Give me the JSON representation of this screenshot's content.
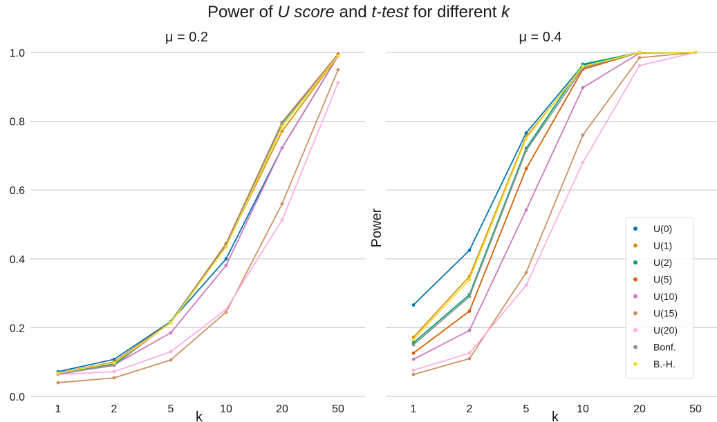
{
  "figure": {
    "title_parts": [
      {
        "text": "Power of ",
        "italic": false
      },
      {
        "text": "U score",
        "italic": true
      },
      {
        "text": " and ",
        "italic": false
      },
      {
        "text": "t-test",
        "italic": true
      },
      {
        "text": " for different ",
        "italic": false
      },
      {
        "text": "k",
        "italic": true
      }
    ]
  },
  "chart_data": [
    {
      "type": "line",
      "title": "μ = 0.2",
      "xlabel": "k",
      "ylabel": "",
      "categories": [
        "1",
        "2",
        "5",
        "10",
        "20",
        "50"
      ],
      "ylim": [
        0.0,
        1.0
      ],
      "yticks": [
        "0.0",
        "0.2",
        "0.4",
        "0.6",
        "0.8",
        "1.0"
      ],
      "grid": "horizontal",
      "legend": "none",
      "series": [
        {
          "name": "U(0)",
          "color": "#0173b2",
          "values": [
            0.072,
            0.108,
            0.218,
            0.4,
            0.723,
            0.99
          ]
        },
        {
          "name": "U(1)",
          "color": "#de8f05",
          "values": [
            0.068,
            0.1,
            0.214,
            0.438,
            0.771,
            0.99
          ]
        },
        {
          "name": "U(2)",
          "color": "#029e73",
          "values": [
            0.066,
            0.094,
            0.218,
            0.442,
            0.793,
            0.993
          ]
        },
        {
          "name": "U(5)",
          "color": "#d55e00",
          "values": [
            0.068,
            0.1,
            0.216,
            0.444,
            0.797,
            0.995
          ]
        },
        {
          "name": "U(10)",
          "color": "#cc78bc",
          "values": [
            0.064,
            0.092,
            0.185,
            0.381,
            0.723,
            0.99
          ]
        },
        {
          "name": "U(15)",
          "color": "#ca9161",
          "values": [
            0.04,
            0.054,
            0.106,
            0.245,
            0.56,
            0.95
          ]
        },
        {
          "name": "U(20)",
          "color": "#fbafe4",
          "values": [
            0.064,
            0.072,
            0.13,
            0.253,
            0.513,
            0.912
          ]
        },
        {
          "name": "Bonf.",
          "color": "#949494",
          "values": [
            0.066,
            0.09,
            0.216,
            0.44,
            0.795,
            0.992
          ]
        },
        {
          "name": "B.-H.",
          "color": "#ece133",
          "values": [
            0.068,
            0.098,
            0.214,
            0.435,
            0.785,
            0.991
          ]
        }
      ]
    },
    {
      "type": "line",
      "title": "μ = 0.4",
      "xlabel": "k",
      "ylabel": "Power",
      "categories": [
        "1",
        "2",
        "5",
        "10",
        "20",
        "50"
      ],
      "ylim": [
        0.0,
        1.0
      ],
      "grid": "horizontal",
      "legend": "bottom-right",
      "series": [
        {
          "name": "U(0)",
          "color": "#0173b2",
          "values": [
            0.266,
            0.425,
            0.766,
            0.963,
            1.0,
            1.0
          ]
        },
        {
          "name": "U(1)",
          "color": "#de8f05",
          "values": [
            0.172,
            0.349,
            0.755,
            0.957,
            1.0,
            1.0
          ]
        },
        {
          "name": "U(2)",
          "color": "#029e73",
          "values": [
            0.156,
            0.296,
            0.721,
            0.966,
            1.0,
            1.0
          ]
        },
        {
          "name": "U(5)",
          "color": "#d55e00",
          "values": [
            0.126,
            0.248,
            0.662,
            0.951,
            1.0,
            1.0
          ]
        },
        {
          "name": "U(10)",
          "color": "#cc78bc",
          "values": [
            0.108,
            0.192,
            0.542,
            0.898,
            0.998,
            1.0
          ]
        },
        {
          "name": "U(15)",
          "color": "#ca9161",
          "values": [
            0.064,
            0.11,
            0.36,
            0.76,
            0.985,
            1.0
          ]
        },
        {
          "name": "U(20)",
          "color": "#fbafe4",
          "values": [
            0.076,
            0.126,
            0.323,
            0.68,
            0.962,
            1.0
          ]
        },
        {
          "name": "Bonf.",
          "color": "#949494",
          "values": [
            0.15,
            0.29,
            0.715,
            0.955,
            1.0,
            1.0
          ]
        },
        {
          "name": "B.-H.",
          "color": "#ece133",
          "values": [
            0.165,
            0.34,
            0.75,
            0.96,
            1.0,
            1.0
          ]
        }
      ]
    }
  ]
}
